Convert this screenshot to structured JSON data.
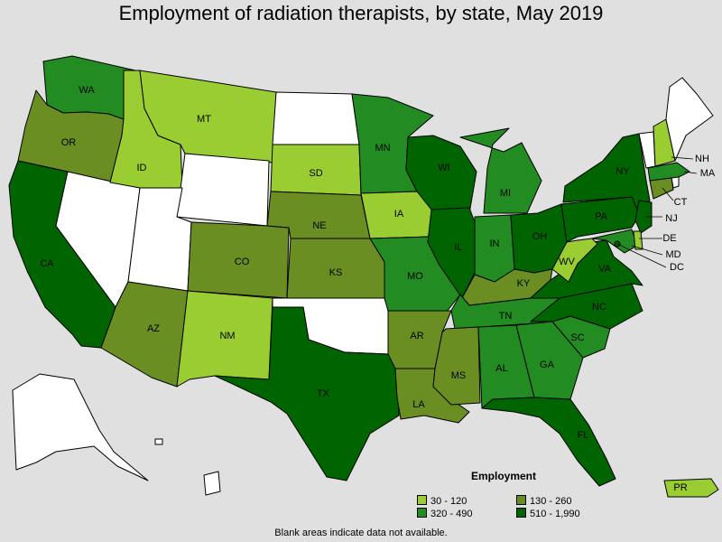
{
  "title": "Employment of radiation therapists, by state, May 2019",
  "legend": {
    "title": "Employment",
    "items": [
      {
        "label": "30 - 120",
        "color": "#9acd32"
      },
      {
        "label": "130 - 260",
        "color": "#6b8e23"
      },
      {
        "label": "320 - 490",
        "color": "#228b22"
      },
      {
        "label": "510 - 1,990",
        "color": "#006400"
      }
    ]
  },
  "footnote": "Blank areas indicate data not available.",
  "colors": {
    "no_data": "#ffffff",
    "background": "#e0e0e0"
  },
  "states": {
    "WA": {
      "label": "WA",
      "class": 2
    },
    "OR": {
      "label": "OR",
      "class": 1
    },
    "CA": {
      "label": "CA",
      "class": 3
    },
    "NV": {
      "label": "",
      "class": -1
    },
    "ID": {
      "label": "ID",
      "class": 0
    },
    "MT": {
      "label": "MT",
      "class": 0
    },
    "WY": {
      "label": "",
      "class": -1
    },
    "UT": {
      "label": "",
      "class": -1
    },
    "AZ": {
      "label": "AZ",
      "class": 1
    },
    "CO": {
      "label": "CO",
      "class": 1
    },
    "NM": {
      "label": "NM",
      "class": 0
    },
    "ND": {
      "label": "",
      "class": -1
    },
    "SD": {
      "label": "SD",
      "class": 0
    },
    "NE": {
      "label": "NE",
      "class": 1
    },
    "KS": {
      "label": "KS",
      "class": 1
    },
    "OK": {
      "label": "",
      "class": -1
    },
    "TX": {
      "label": "TX",
      "class": 3
    },
    "MN": {
      "label": "MN",
      "class": 2
    },
    "IA": {
      "label": "IA",
      "class": 0
    },
    "MO": {
      "label": "MO",
      "class": 2
    },
    "AR": {
      "label": "AR",
      "class": 1
    },
    "LA": {
      "label": "LA",
      "class": 1
    },
    "WI": {
      "label": "WI",
      "class": 3
    },
    "IL": {
      "label": "IL",
      "class": 3
    },
    "MI": {
      "label": "MI",
      "class": 2
    },
    "IN": {
      "label": "IN",
      "class": 2
    },
    "OH": {
      "label": "OH",
      "class": 3
    },
    "KY": {
      "label": "KY",
      "class": 1
    },
    "TN": {
      "label": "TN",
      "class": 2
    },
    "MS": {
      "label": "MS",
      "class": 1
    },
    "AL": {
      "label": "AL",
      "class": 2
    },
    "GA": {
      "label": "GA",
      "class": 2
    },
    "FL": {
      "label": "FL",
      "class": 3
    },
    "SC": {
      "label": "SC",
      "class": 2
    },
    "NC": {
      "label": "NC",
      "class": 3
    },
    "VA": {
      "label": "VA",
      "class": 3
    },
    "WV": {
      "label": "WV",
      "class": 0
    },
    "PA": {
      "label": "PA",
      "class": 3
    },
    "NY": {
      "label": "NY",
      "class": 3
    },
    "NJ": {
      "label": "NJ",
      "class": 3
    },
    "DE": {
      "label": "DE",
      "class": 0
    },
    "MD": {
      "label": "MD",
      "class": 2
    },
    "DC": {
      "label": "DC",
      "class": 3
    },
    "CT": {
      "label": "CT",
      "class": 1
    },
    "MA": {
      "label": "MA",
      "class": 2
    },
    "RI": {
      "label": "",
      "class": -1
    },
    "VT": {
      "label": "",
      "class": -1
    },
    "NH": {
      "label": "NH",
      "class": 0
    },
    "ME": {
      "label": "",
      "class": -1
    },
    "AK": {
      "label": "",
      "class": -1
    },
    "HI": {
      "label": "",
      "class": -1
    },
    "PR": {
      "label": "PR",
      "class": 0
    }
  }
}
